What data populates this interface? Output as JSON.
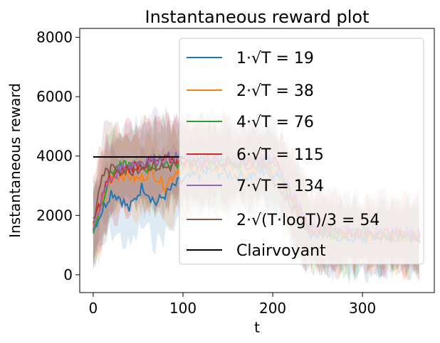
{
  "chart_data": {
    "type": "line",
    "title": "Instantaneous reward plot",
    "xlabel": "t",
    "ylabel": "Instantaneous reward",
    "xlim": [
      -15,
      380
    ],
    "ylim": [
      -600,
      8300
    ],
    "xticks": [
      0,
      100,
      200,
      300
    ],
    "yticks": [
      0,
      2000,
      4000,
      6000,
      8000
    ],
    "grid": false,
    "legend_position": "upper right",
    "series": [
      {
        "name": "1·√T = 19",
        "color": "#1f77b4",
        "x": [
          0,
          20,
          30,
          40,
          55,
          70,
          80,
          95,
          110,
          130,
          150,
          170,
          190,
          210,
          240,
          270,
          300,
          330,
          365
        ],
        "y": [
          1550,
          2800,
          2600,
          2200,
          3000,
          2400,
          2700,
          3100,
          3300,
          3500,
          3400,
          3300,
          3500,
          3400,
          1400,
          1300,
          1200,
          1300,
          1250
        ]
      },
      {
        "name": "2·√T = 38",
        "color": "#ff7f0e",
        "x": [
          0,
          20,
          35,
          50,
          65,
          80,
          95,
          110,
          130,
          150,
          170,
          190,
          210,
          240,
          270,
          300,
          330,
          365
        ],
        "y": [
          1600,
          3300,
          3400,
          3200,
          3500,
          3000,
          3600,
          3500,
          3600,
          3500,
          3400,
          3600,
          3500,
          1500,
          1400,
          1300,
          1350,
          1300
        ]
      },
      {
        "name": "4·√T = 76",
        "color": "#2ca02c",
        "x": [
          0,
          20,
          40,
          60,
          80,
          100,
          120,
          140,
          170,
          200,
          240,
          270,
          300,
          330,
          365
        ],
        "y": [
          1500,
          3500,
          3700,
          3600,
          3800,
          3700,
          3900,
          3800,
          3700,
          3800,
          1500,
          1400,
          1400,
          1350,
          1300
        ]
      },
      {
        "name": "6·√T = 115",
        "color": "#d62728",
        "x": [
          0,
          15,
          30,
          50,
          70,
          90,
          110,
          130,
          160,
          200,
          240,
          270,
          300,
          330,
          365
        ],
        "y": [
          1700,
          3100,
          3500,
          3700,
          3800,
          3900,
          3800,
          3900,
          3800,
          3900,
          1600,
          1500,
          1400,
          1400,
          1350
        ]
      },
      {
        "name": "7·√T = 134",
        "color": "#9467bd",
        "x": [
          0,
          15,
          30,
          50,
          70,
          90,
          110,
          130,
          160,
          200,
          240,
          270,
          300,
          330,
          365
        ],
        "y": [
          1650,
          3000,
          3600,
          3800,
          3900,
          3950,
          3900,
          3900,
          3850,
          3900,
          1700,
          1550,
          1450,
          1400,
          1400
        ]
      },
      {
        "name": "2·√(T·logT)/3 = 54",
        "color": "#8c564b",
        "x": [
          0,
          10,
          25,
          40,
          60,
          80,
          100,
          120,
          150,
          190,
          240,
          270,
          300,
          330,
          365
        ],
        "y": [
          1700,
          3400,
          3600,
          3500,
          3700,
          3600,
          3800,
          3700,
          3800,
          3700,
          1500,
          1400,
          1350,
          1300,
          1300
        ]
      },
      {
        "name": "Clairvoyant",
        "color": "#000000",
        "x": [
          0,
          100
        ],
        "y": [
          3970,
          3970
        ]
      }
    ]
  }
}
